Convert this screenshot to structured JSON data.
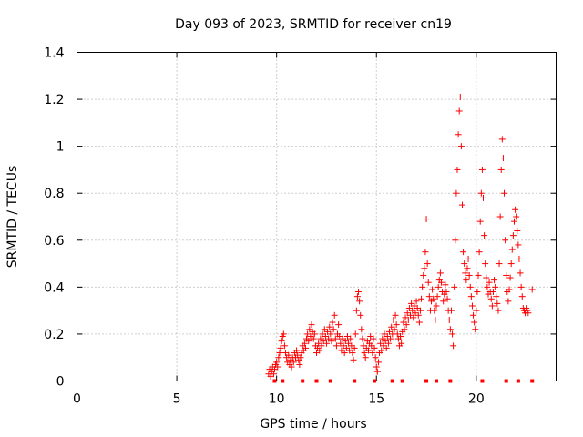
{
  "chart_data": {
    "type": "scatter",
    "title": "Day 093 of 2023, SRMTID for receiver cn19",
    "xlabel": "GPS time / hours",
    "ylabel": "SRMTID / TECUs",
    "xlim": [
      0,
      24
    ],
    "ylim": [
      0,
      1.4
    ],
    "x_ticks": [
      "0",
      "5",
      "10",
      "15",
      "20"
    ],
    "y_ticks": [
      "0",
      "0.2",
      "0.4",
      "0.6",
      "0.8",
      "1",
      "1.2",
      "1.4"
    ],
    "grid": true,
    "marker": "plus",
    "marker_color": "#ff0000",
    "series": [
      {
        "name": "SRMTID",
        "points": [
          [
            9.6,
            0.03
          ],
          [
            9.65,
            0.05
          ],
          [
            9.7,
            0.02
          ],
          [
            9.75,
            0.04
          ],
          [
            9.8,
            0.06
          ],
          [
            9.85,
            0.03
          ],
          [
            9.9,
            0.05
          ],
          [
            9.95,
            0.07
          ],
          [
            10.0,
            0.08
          ],
          [
            10.05,
            0.06
          ],
          [
            10.1,
            0.1
          ],
          [
            10.15,
            0.12
          ],
          [
            10.2,
            0.14
          ],
          [
            10.25,
            0.17
          ],
          [
            10.3,
            0.19
          ],
          [
            10.35,
            0.2
          ],
          [
            10.4,
            0.15
          ],
          [
            10.45,
            0.12
          ],
          [
            10.5,
            0.1
          ],
          [
            10.55,
            0.08
          ],
          [
            10.6,
            0.11
          ],
          [
            10.65,
            0.07
          ],
          [
            10.7,
            0.09
          ],
          [
            10.75,
            0.06
          ],
          [
            10.8,
            0.1
          ],
          [
            10.85,
            0.08
          ],
          [
            10.9,
            0.12
          ],
          [
            10.95,
            0.1
          ],
          [
            11.0,
            0.13
          ],
          [
            11.05,
            0.11
          ],
          [
            11.1,
            0.09
          ],
          [
            11.15,
            0.07
          ],
          [
            11.2,
            0.1
          ],
          [
            11.25,
            0.12
          ],
          [
            11.3,
            0.15
          ],
          [
            11.35,
            0.13
          ],
          [
            11.4,
            0.16
          ],
          [
            11.45,
            0.14
          ],
          [
            11.5,
            0.18
          ],
          [
            11.55,
            0.2
          ],
          [
            11.6,
            0.17
          ],
          [
            11.65,
            0.22
          ],
          [
            11.7,
            0.19
          ],
          [
            11.75,
            0.24
          ],
          [
            11.8,
            0.21
          ],
          [
            11.85,
            0.18
          ],
          [
            11.9,
            0.2
          ],
          [
            11.95,
            0.15
          ],
          [
            12.0,
            0.12
          ],
          [
            12.05,
            0.14
          ],
          [
            12.1,
            0.16
          ],
          [
            12.15,
            0.13
          ],
          [
            12.2,
            0.18
          ],
          [
            12.25,
            0.15
          ],
          [
            12.3,
            0.2
          ],
          [
            12.35,
            0.17
          ],
          [
            12.4,
            0.22
          ],
          [
            12.45,
            0.19
          ],
          [
            12.5,
            0.16
          ],
          [
            12.55,
            0.21
          ],
          [
            12.6,
            0.18
          ],
          [
            12.65,
            0.23
          ],
          [
            12.7,
            0.2
          ],
          [
            12.75,
            0.17
          ],
          [
            12.8,
            0.25
          ],
          [
            12.85,
            0.22
          ],
          [
            12.9,
            0.28
          ],
          [
            12.95,
            0.18
          ],
          [
            13.0,
            0.15
          ],
          [
            13.05,
            0.2
          ],
          [
            13.1,
            0.24
          ],
          [
            13.15,
            0.19
          ],
          [
            13.2,
            0.16
          ],
          [
            13.25,
            0.13
          ],
          [
            13.3,
            0.18
          ],
          [
            13.35,
            0.15
          ],
          [
            13.4,
            0.12
          ],
          [
            13.45,
            0.17
          ],
          [
            13.5,
            0.14
          ],
          [
            13.55,
            0.19
          ],
          [
            13.6,
            0.16
          ],
          [
            13.65,
            0.13
          ],
          [
            13.7,
            0.18
          ],
          [
            13.75,
            0.15
          ],
          [
            13.8,
            0.12
          ],
          [
            13.85,
            0.09
          ],
          [
            13.9,
            0.14
          ],
          [
            13.95,
            0.2
          ],
          [
            14.0,
            0.3
          ],
          [
            14.05,
            0.36
          ],
          [
            14.1,
            0.38
          ],
          [
            14.15,
            0.34
          ],
          [
            14.2,
            0.28
          ],
          [
            14.25,
            0.22
          ],
          [
            14.3,
            0.18
          ],
          [
            14.35,
            0.15
          ],
          [
            14.4,
            0.12
          ],
          [
            14.45,
            0.1
          ],
          [
            14.5,
            0.14
          ],
          [
            14.55,
            0.17
          ],
          [
            14.6,
            0.13
          ],
          [
            14.65,
            0.16
          ],
          [
            14.7,
            0.19
          ],
          [
            14.75,
            0.15
          ],
          [
            14.8,
            0.12
          ],
          [
            14.85,
            0.18
          ],
          [
            14.9,
            0.14
          ],
          [
            14.95,
            0.1
          ],
          [
            15.0,
            0.06
          ],
          [
            15.05,
            0.04
          ],
          [
            15.1,
            0.08
          ],
          [
            15.15,
            0.12
          ],
          [
            15.2,
            0.16
          ],
          [
            15.25,
            0.13
          ],
          [
            15.3,
            0.18
          ],
          [
            15.35,
            0.15
          ],
          [
            15.4,
            0.2
          ],
          [
            15.45,
            0.17
          ],
          [
            15.5,
            0.14
          ],
          [
            15.55,
            0.19
          ],
          [
            15.6,
            0.16
          ],
          [
            15.65,
            0.21
          ],
          [
            15.7,
            0.18
          ],
          [
            15.75,
            0.23
          ],
          [
            15.8,
            0.2
          ],
          [
            15.85,
            0.26
          ],
          [
            15.9,
            0.22
          ],
          [
            15.95,
            0.28
          ],
          [
            16.0,
            0.24
          ],
          [
            16.05,
            0.2
          ],
          [
            16.1,
            0.18
          ],
          [
            16.15,
            0.15
          ],
          [
            16.2,
            0.19
          ],
          [
            16.25,
            0.16
          ],
          [
            16.3,
            0.21
          ],
          [
            16.35,
            0.25
          ],
          [
            16.4,
            0.22
          ],
          [
            16.45,
            0.27
          ],
          [
            16.5,
            0.24
          ],
          [
            16.55,
            0.29
          ],
          [
            16.6,
            0.26
          ],
          [
            16.65,
            0.31
          ],
          [
            16.7,
            0.28
          ],
          [
            16.75,
            0.33
          ],
          [
            16.8,
            0.3
          ],
          [
            16.85,
            0.27
          ],
          [
            16.9,
            0.32
          ],
          [
            16.95,
            0.29
          ],
          [
            17.0,
            0.34
          ],
          [
            17.05,
            0.31
          ],
          [
            17.1,
            0.28
          ],
          [
            17.15,
            0.25
          ],
          [
            17.2,
            0.3
          ],
          [
            17.25,
            0.35
          ],
          [
            17.3,
            0.4
          ],
          [
            17.35,
            0.45
          ],
          [
            17.4,
            0.48
          ],
          [
            17.45,
            0.55
          ],
          [
            17.5,
            0.69
          ],
          [
            17.55,
            0.5
          ],
          [
            17.6,
            0.42
          ],
          [
            17.65,
            0.36
          ],
          [
            17.7,
            0.3
          ],
          [
            17.75,
            0.34
          ],
          [
            17.8,
            0.39
          ],
          [
            17.85,
            0.35
          ],
          [
            17.9,
            0.3
          ],
          [
            17.95,
            0.26
          ],
          [
            18.0,
            0.32
          ],
          [
            18.05,
            0.36
          ],
          [
            18.1,
            0.4
          ],
          [
            18.15,
            0.43
          ],
          [
            18.2,
            0.46
          ],
          [
            18.25,
            0.42
          ],
          [
            18.3,
            0.38
          ],
          [
            18.35,
            0.34
          ],
          [
            18.4,
            0.37
          ],
          [
            18.45,
            0.41
          ],
          [
            18.5,
            0.38
          ],
          [
            18.55,
            0.35
          ],
          [
            18.6,
            0.3
          ],
          [
            18.65,
            0.26
          ],
          [
            18.7,
            0.22
          ],
          [
            18.75,
            0.3
          ],
          [
            18.8,
            0.2
          ],
          [
            18.85,
            0.15
          ],
          [
            18.9,
            0.4
          ],
          [
            18.95,
            0.6
          ],
          [
            19.0,
            0.8
          ],
          [
            19.05,
            0.9
          ],
          [
            19.1,
            1.05
          ],
          [
            19.15,
            1.15
          ],
          [
            19.2,
            1.21
          ],
          [
            19.25,
            1.0
          ],
          [
            19.3,
            0.75
          ],
          [
            19.35,
            0.55
          ],
          [
            19.4,
            0.5
          ],
          [
            19.45,
            0.46
          ],
          [
            19.5,
            0.43
          ],
          [
            19.55,
            0.48
          ],
          [
            19.6,
            0.52
          ],
          [
            19.65,
            0.45
          ],
          [
            19.7,
            0.4
          ],
          [
            19.75,
            0.36
          ],
          [
            19.8,
            0.32
          ],
          [
            19.85,
            0.28
          ],
          [
            19.9,
            0.25
          ],
          [
            19.95,
            0.22
          ],
          [
            20.0,
            0.3
          ],
          [
            20.05,
            0.38
          ],
          [
            20.1,
            0.45
          ],
          [
            20.15,
            0.55
          ],
          [
            20.2,
            0.68
          ],
          [
            20.25,
            0.8
          ],
          [
            20.3,
            0.9
          ],
          [
            20.35,
            0.78
          ],
          [
            20.4,
            0.62
          ],
          [
            20.45,
            0.5
          ],
          [
            20.5,
            0.44
          ],
          [
            20.55,
            0.4
          ],
          [
            20.6,
            0.37
          ],
          [
            20.65,
            0.42
          ],
          [
            20.7,
            0.38
          ],
          [
            20.75,
            0.35
          ],
          [
            20.8,
            0.32
          ],
          [
            20.85,
            0.38
          ],
          [
            20.9,
            0.43
          ],
          [
            20.95,
            0.4
          ],
          [
            21.0,
            0.36
          ],
          [
            21.05,
            0.33
          ],
          [
            21.1,
            0.3
          ],
          [
            21.15,
            0.5
          ],
          [
            21.2,
            0.7
          ],
          [
            21.25,
            0.9
          ],
          [
            21.3,
            1.03
          ],
          [
            21.35,
            0.95
          ],
          [
            21.4,
            0.8
          ],
          [
            21.45,
            0.6
          ],
          [
            21.5,
            0.45
          ],
          [
            21.55,
            0.38
          ],
          [
            21.6,
            0.34
          ],
          [
            21.65,
            0.39
          ],
          [
            21.7,
            0.44
          ],
          [
            21.75,
            0.5
          ],
          [
            21.8,
            0.56
          ],
          [
            21.85,
            0.62
          ],
          [
            21.9,
            0.68
          ],
          [
            21.95,
            0.73
          ],
          [
            22.0,
            0.7
          ],
          [
            22.05,
            0.64
          ],
          [
            22.1,
            0.58
          ],
          [
            22.15,
            0.52
          ],
          [
            22.2,
            0.46
          ],
          [
            22.25,
            0.4
          ],
          [
            22.3,
            0.36
          ],
          [
            22.35,
            0.31
          ],
          [
            22.4,
            0.3
          ],
          [
            22.45,
            0.29
          ],
          [
            22.5,
            0.31
          ],
          [
            22.55,
            0.3
          ],
          [
            22.6,
            0.29
          ],
          [
            22.8,
            0.39
          ]
        ]
      }
    ],
    "axis_markers": [
      9.9,
      10.3,
      11.3,
      12.0,
      12.7,
      13.9,
      14.9,
      15.8,
      16.3,
      17.5,
      18.0,
      18.7,
      20.3,
      21.5,
      22.1,
      22.8
    ]
  }
}
